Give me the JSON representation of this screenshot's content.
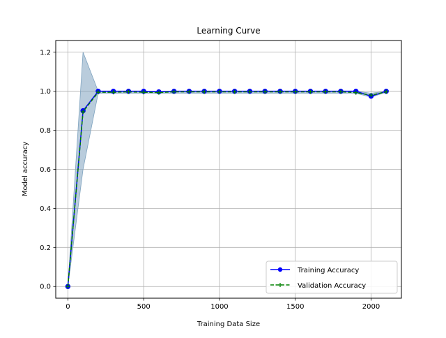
{
  "chart_data": {
    "type": "line",
    "title": "Learning Curve",
    "xlabel": "Training Data Size",
    "ylabel": "Model accuracy",
    "xlim": [
      -80,
      2200
    ],
    "ylim": [
      -0.06,
      1.26
    ],
    "xticks": [
      0,
      500,
      1000,
      1500,
      2000
    ],
    "yticks": [
      0.0,
      0.2,
      0.4,
      0.6,
      0.8,
      1.0,
      1.2
    ],
    "xtick_labels": [
      "0",
      "500",
      "1000",
      "1500",
      "2000"
    ],
    "ytick_labels": [
      "0.0",
      "0.2",
      "0.4",
      "0.6",
      "0.8",
      "1.0",
      "1.2"
    ],
    "grid": true,
    "legend_position": "lower-right",
    "x": [
      0,
      100,
      200,
      300,
      400,
      500,
      600,
      700,
      800,
      900,
      1000,
      1100,
      1200,
      1300,
      1400,
      1500,
      1600,
      1700,
      1800,
      1900,
      2000,
      2100
    ],
    "series": [
      {
        "name": "Training Accuracy",
        "color": "#0000ff",
        "style": "solid",
        "marker": "circle",
        "values": [
          0.0,
          0.9,
          1.0,
          1.0,
          1.0,
          1.0,
          0.997,
          1.0,
          1.0,
          1.0,
          1.0,
          1.0,
          1.0,
          1.0,
          1.0,
          1.0,
          1.0,
          1.0,
          1.0,
          1.0,
          0.975,
          1.0
        ]
      },
      {
        "name": "Validation Accuracy",
        "color": "#008000",
        "style": "dashed",
        "marker": "plus",
        "values": [
          0.0,
          0.895,
          0.995,
          0.995,
          0.997,
          0.995,
          0.993,
          0.997,
          0.997,
          0.997,
          0.997,
          0.997,
          0.997,
          0.997,
          0.997,
          0.997,
          0.997,
          0.997,
          0.997,
          0.993,
          0.98,
          0.997
        ],
        "band_lower": [
          0.0,
          0.6,
          0.99,
          0.99,
          0.99,
          0.99,
          0.99,
          0.99,
          0.99,
          0.99,
          0.99,
          0.99,
          0.99,
          0.99,
          0.99,
          0.99,
          0.99,
          0.99,
          0.99,
          0.99,
          0.97,
          0.995
        ],
        "band_upper": [
          0.0,
          1.2,
          1.0,
          1.0,
          1.0,
          1.0,
          1.0,
          1.0,
          1.0,
          1.0,
          1.0,
          1.0,
          1.0,
          1.0,
          1.0,
          1.0,
          1.0,
          1.0,
          1.0,
          1.0,
          0.99,
          1.0
        ],
        "band_color": "#7fa3bf"
      }
    ]
  }
}
